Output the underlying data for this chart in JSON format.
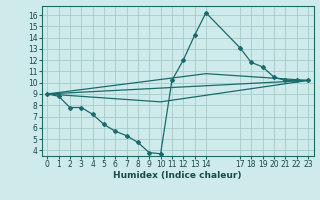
{
  "title": "",
  "xlabel": "Humidex (Indice chaleur)",
  "bg_color": "#ceeaea",
  "grid_color": "#aad0d0",
  "line_color": "#1a6b6b",
  "xlim": [
    -0.5,
    23.5
  ],
  "ylim": [
    3.5,
    16.8
  ],
  "xticks": [
    0,
    1,
    2,
    3,
    4,
    5,
    6,
    7,
    8,
    9,
    10,
    11,
    12,
    13,
    14,
    17,
    18,
    19,
    20,
    21,
    22,
    23
  ],
  "yticks": [
    4,
    5,
    6,
    7,
    8,
    9,
    10,
    11,
    12,
    13,
    14,
    15,
    16
  ],
  "series": [
    {
      "x": [
        0,
        1,
        2,
        3,
        4,
        5,
        6,
        7,
        8,
        9,
        10,
        11,
        12,
        13,
        14,
        17,
        18,
        19,
        20,
        21,
        22,
        23
      ],
      "y": [
        9.0,
        8.8,
        7.8,
        7.8,
        7.2,
        6.3,
        5.7,
        5.3,
        4.7,
        3.8,
        3.7,
        10.2,
        12.0,
        14.2,
        16.2,
        13.1,
        11.8,
        11.4,
        10.5,
        10.2,
        10.2,
        10.2
      ]
    },
    {
      "x": [
        0,
        23
      ],
      "y": [
        9.0,
        10.2
      ]
    },
    {
      "x": [
        0,
        10,
        23
      ],
      "y": [
        9.0,
        8.3,
        10.2
      ]
    },
    {
      "x": [
        0,
        14,
        23
      ],
      "y": [
        9.0,
        10.8,
        10.2
      ]
    }
  ]
}
